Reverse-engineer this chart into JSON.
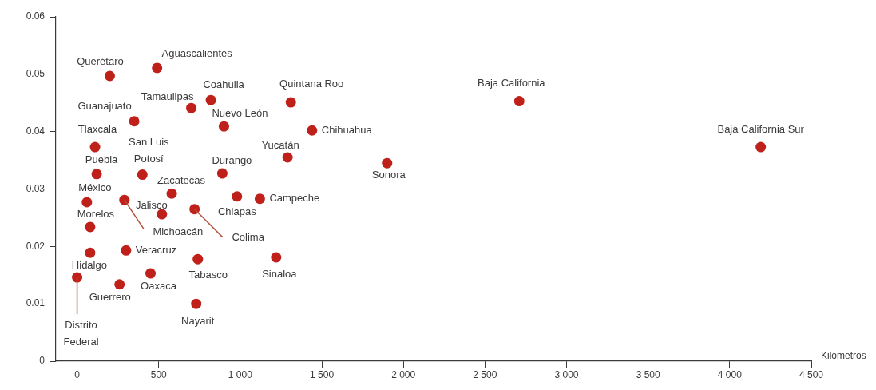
{
  "chart_data": {
    "type": "scatter",
    "xlabel": "Kilómetros",
    "color": "#c0201a",
    "marker": "circle",
    "grid": false,
    "legend": false,
    "x": [
      200,
      490,
      700,
      820,
      350,
      900,
      1310,
      1440,
      2710,
      4190,
      110,
      1290,
      1900,
      120,
      400,
      890,
      580,
      980,
      1120,
      60,
      290,
      520,
      720,
      80,
      80,
      300,
      740,
      1220,
      450,
      260,
      0,
      730
    ],
    "values": [
      0.0497,
      0.0511,
      0.0441,
      0.0455,
      0.0418,
      0.0409,
      0.0451,
      0.0402,
      0.0453,
      0.0373,
      0.0373,
      0.0355,
      0.0345,
      0.0326,
      0.0325,
      0.0327,
      0.0292,
      0.0287,
      0.0283,
      0.0277,
      0.0281,
      0.0256,
      0.0265,
      0.0234,
      0.0189,
      0.0193,
      0.0178,
      0.0181,
      0.0153,
      0.0134,
      0.0146,
      0.01
    ],
    "annotations": [
      {
        "text": "Querétaro",
        "x": 200,
        "y": 0.0497
      },
      {
        "text": "Aguascalientes",
        "x": 490,
        "y": 0.0511
      },
      {
        "text": "Tamaulipas",
        "x": 700,
        "y": 0.0441
      },
      {
        "text": "Coahuila",
        "x": 820,
        "y": 0.0455
      },
      {
        "text": "Guanajuato",
        "x": 350,
        "y": 0.0418
      },
      {
        "text": "Nuevo León",
        "x": 900,
        "y": 0.0409
      },
      {
        "text": "Quintana Roo",
        "x": 1310,
        "y": 0.0451
      },
      {
        "text": "Chihuahua",
        "x": 1440,
        "y": 0.0402
      },
      {
        "text": "Baja California",
        "x": 2710,
        "y": 0.0453
      },
      {
        "text": "Baja California Sur",
        "x": 4190,
        "y": 0.0373
      },
      {
        "text": "Tlaxcala",
        "x": 110,
        "y": 0.0373
      },
      {
        "text": "Yucatán",
        "x": 1290,
        "y": 0.0355
      },
      {
        "text": "Sonora",
        "x": 1900,
        "y": 0.0345
      },
      {
        "text": "Puebla",
        "x": 120,
        "y": 0.0326
      },
      {
        "text": "San Luis Potosí",
        "x": 400,
        "y": 0.0325
      },
      {
        "text": "Durango",
        "x": 890,
        "y": 0.0327
      },
      {
        "text": "Zacatecas",
        "x": 580,
        "y": 0.0292
      },
      {
        "text": "Chiapas",
        "x": 980,
        "y": 0.0287
      },
      {
        "text": "Campeche",
        "x": 1120,
        "y": 0.0283
      },
      {
        "text": "México",
        "x": 60,
        "y": 0.0277
      },
      {
        "text": "Michoacán",
        "x": 290,
        "y": 0.0281
      },
      {
        "text": "Jalisco",
        "x": 520,
        "y": 0.0256
      },
      {
        "text": "Colima",
        "x": 720,
        "y": 0.0265
      },
      {
        "text": "Morelos",
        "x": 80,
        "y": 0.0234
      },
      {
        "text": "Hidalgo",
        "x": 80,
        "y": 0.0189
      },
      {
        "text": "Veracruz",
        "x": 300,
        "y": 0.0193
      },
      {
        "text": "Tabasco",
        "x": 740,
        "y": 0.0178
      },
      {
        "text": "Sinaloa",
        "x": 1220,
        "y": 0.0181
      },
      {
        "text": "Oaxaca",
        "x": 450,
        "y": 0.0153
      },
      {
        "text": "Guerrero",
        "x": 260,
        "y": 0.0134
      },
      {
        "text": "Distrito Federal",
        "x": 0,
        "y": 0.0146
      },
      {
        "text": "Nayarit",
        "x": 730,
        "y": 0.01
      }
    ],
    "xlim": [
      -130,
      4500
    ],
    "xticks": [
      0,
      500,
      {
        "value": 1000,
        "label": "1 000"
      },
      {
        "value": 1500,
        "label": "1 500"
      },
      {
        "value": 2000,
        "label": "2 000"
      },
      {
        "value": 2500,
        "label": "2 500"
      },
      {
        "value": 3000,
        "label": "3 000"
      },
      {
        "value": 3500,
        "label": "3 500"
      },
      {
        "value": 4000,
        "label": "4 000"
      },
      {
        "value": 4500,
        "label": "4 500"
      }
    ],
    "ylim": [
      0,
      0.06
    ],
    "yticks": [
      0,
      0.01,
      0.02,
      0.03,
      0.04,
      0.05,
      0.06
    ]
  }
}
